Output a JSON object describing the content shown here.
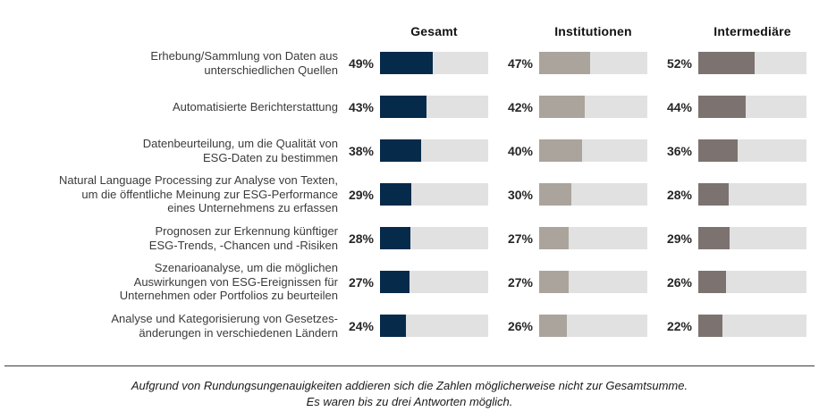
{
  "chart_data": {
    "type": "bar",
    "orientation": "horizontal",
    "grid": false,
    "legend_position": "column-headers",
    "xlim": [
      0,
      100
    ],
    "value_suffix": "%",
    "track_color": "#e1e1e1",
    "groups": [
      "Gesamt",
      "Institutionen",
      "Intermediäre"
    ],
    "categories": [
      {
        "lines": [
          "Erhebung/Sammlung von Daten aus",
          "unterschiedlichen Quellen"
        ]
      },
      {
        "lines": [
          "Automatisierte Berichterstattung"
        ]
      },
      {
        "lines": [
          "Datenbeurteilung, um die Qualität von",
          "ESG-Daten zu bestimmen"
        ]
      },
      {
        "lines": [
          "Natural Language Processing zur Analyse von Texten,",
          "um die öffentliche Meinung zur ESG-Performance",
          "eines Unternehmens zu erfassen"
        ]
      },
      {
        "lines": [
          "Prognosen zur Erkennung künftiger",
          "ESG-Trends, -Chancen und -Risiken"
        ]
      },
      {
        "lines": [
          "Szenarioanalyse, um die möglichen",
          "Auswirkungen von ESG-Ereignissen für",
          "Unternehmen oder Portfolios zu beurteilen"
        ]
      },
      {
        "lines": [
          "Analyse und Kategorisierung von Gesetzes-",
          "änderungen in verschiedenen Ländern"
        ]
      }
    ],
    "series": [
      {
        "name": "Gesamt",
        "key": "gesamt",
        "color": "#062a4a",
        "values": [
          49,
          43,
          38,
          29,
          28,
          27,
          24
        ]
      },
      {
        "name": "Institutionen",
        "key": "institutionen",
        "color": "#aba49c",
        "values": [
          47,
          42,
          40,
          30,
          27,
          27,
          26
        ]
      },
      {
        "name": "Intermediäre",
        "key": "intermediaere",
        "color": "#7c7370",
        "values": [
          52,
          44,
          36,
          28,
          29,
          26,
          22
        ]
      }
    ]
  },
  "footnote": {
    "line1": "Aufgrund von Rundungsungenauigkeiten addieren sich die Zahlen möglicherweise nicht zur Gesamtsumme.",
    "line2": "Es waren bis zu drei Antworten möglich."
  }
}
